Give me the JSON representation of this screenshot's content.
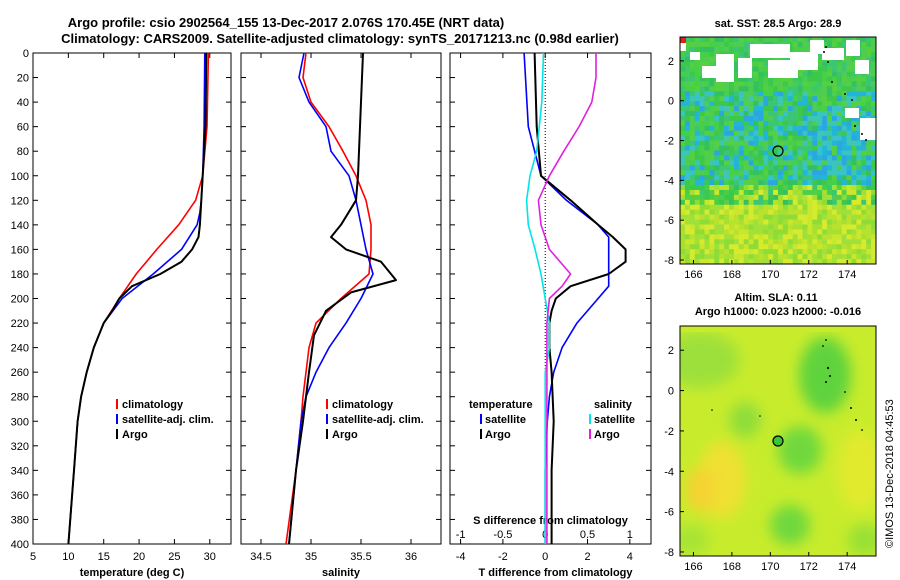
{
  "header": {
    "line1": "Argo profile: csio 2902564_155 13-Dec-2017 2.076S 170.45E (NRT data)",
    "line2": "Climatology: CARS2009. Satellite-adjusted climatology: synTS_20171213.nc (0.98d earlier)"
  },
  "footer_stamp": "©IMOS 13-Dec-2018 04:45:53",
  "colors": {
    "climatology": "#ff0000",
    "satellite": "#0000ff",
    "argo": "#000000",
    "sat_salinity": "#00e5e5",
    "argo_salinity": "#e020e0"
  },
  "chart_data": [
    {
      "type": "line",
      "panel": "temperature",
      "xlabel": "temperature (deg C)",
      "xlim": [
        5,
        33
      ],
      "xticks": [
        "5",
        "10",
        "15",
        "20",
        "25",
        "30"
      ],
      "xtick_values": [
        5,
        10,
        15,
        20,
        25,
        30
      ],
      "ylim": [
        0,
        400
      ],
      "yticks": [
        "0",
        "20",
        "40",
        "60",
        "80",
        "100",
        "120",
        "140",
        "160",
        "180",
        "200",
        "220",
        "240",
        "260",
        "280",
        "300",
        "320",
        "340",
        "360",
        "380",
        "400"
      ],
      "legend": [
        "climatology",
        "satellite-adj. clim.",
        "Argo"
      ],
      "series": [
        {
          "name": "climatology",
          "color": "#ff0000",
          "depth": [
            0,
            60,
            100,
            120,
            140,
            160,
            180,
            200,
            220,
            240,
            260,
            280,
            300,
            340,
            400
          ],
          "values": [
            29.8,
            29.6,
            29.0,
            28.0,
            25.6,
            22.5,
            19.6,
            17.2,
            15.0,
            13.6,
            12.6,
            11.8,
            11.3,
            10.8,
            10.0
          ]
        },
        {
          "name": "satellite-adj. clim.",
          "color": "#0000ff",
          "depth": [
            0,
            60,
            100,
            120,
            130,
            140,
            160,
            180,
            200,
            220,
            240,
            260,
            280,
            300,
            340,
            400
          ],
          "values": [
            29.3,
            29.2,
            29.0,
            28.8,
            28.6,
            28.2,
            26.0,
            22.0,
            17.6,
            15.0,
            13.6,
            12.6,
            11.8,
            11.3,
            10.8,
            10.0
          ]
        },
        {
          "name": "Argo",
          "color": "#000000",
          "depth": [
            0,
            60,
            100,
            120,
            140,
            150,
            160,
            170,
            180,
            190,
            200,
            210,
            220,
            240,
            260,
            280,
            300,
            340,
            400
          ],
          "values": [
            29.5,
            29.4,
            29.0,
            28.8,
            28.6,
            28.4,
            27.5,
            26.0,
            23.0,
            19.0,
            17.2,
            16.2,
            15.0,
            13.6,
            12.6,
            11.8,
            11.3,
            10.8,
            10.0
          ]
        }
      ]
    },
    {
      "type": "line",
      "panel": "salinity",
      "xlabel": "salinity",
      "xlim": [
        34.3,
        36.3
      ],
      "xticks": [
        "34.5",
        "35",
        "35.5",
        "36"
      ],
      "xtick_values": [
        34.5,
        35.0,
        35.5,
        36.0
      ],
      "ylim": [
        0,
        400
      ],
      "legend": [
        "climatology",
        "satellite-adj. clim.",
        "Argo"
      ],
      "series": [
        {
          "name": "climatology",
          "color": "#ff0000",
          "depth": [
            0,
            20,
            40,
            60,
            80,
            100,
            120,
            140,
            160,
            180,
            200,
            220,
            240,
            260,
            280,
            300,
            340,
            400
          ],
          "values": [
            34.95,
            34.92,
            35.0,
            35.18,
            35.32,
            35.45,
            35.55,
            35.6,
            35.6,
            35.58,
            35.3,
            35.05,
            34.98,
            34.95,
            34.92,
            34.9,
            34.85,
            34.75
          ]
        },
        {
          "name": "satellite-adj. clim.",
          "color": "#0000ff",
          "depth": [
            0,
            20,
            40,
            60,
            80,
            100,
            120,
            140,
            160,
            180,
            200,
            220,
            240,
            260,
            280,
            300,
            340,
            400
          ],
          "values": [
            34.93,
            34.88,
            34.98,
            35.15,
            35.2,
            35.38,
            35.45,
            35.5,
            35.55,
            35.62,
            35.5,
            35.35,
            35.18,
            35.05,
            34.95,
            34.9,
            34.85,
            34.78
          ]
        },
        {
          "name": "Argo",
          "color": "#000000",
          "depth": [
            0,
            40,
            80,
            100,
            120,
            140,
            150,
            160,
            170,
            180,
            185,
            195,
            210,
            230,
            260,
            300,
            340,
            400
          ],
          "values": [
            35.52,
            35.5,
            35.48,
            35.47,
            35.45,
            35.3,
            35.2,
            35.35,
            35.7,
            35.8,
            35.85,
            35.4,
            35.15,
            35.03,
            34.98,
            34.92,
            34.85,
            34.78
          ]
        }
      ]
    },
    {
      "type": "line",
      "panel": "difference",
      "xlabel": "T difference from climatology",
      "xlim": [
        -4.5,
        5
      ],
      "xticks": [
        "-4",
        "-2",
        "0",
        "2",
        "4"
      ],
      "xtick_values": [
        -4,
        -2,
        0,
        2,
        4
      ],
      "secondary_xlabel": "S difference from climatology",
      "secondary_xticks": [
        "-1",
        "-0.5",
        "0",
        "0.5",
        "1"
      ],
      "secondary_xtick_values": [
        -1,
        -0.5,
        0,
        0.5,
        1
      ],
      "ylim": [
        0,
        400
      ],
      "legend_temperature_title": "temperature",
      "legend_salinity_title": "salinity",
      "legend_temperature": [
        "satellite",
        "Argo"
      ],
      "legend_salinity": [
        "satellite",
        "Argo"
      ],
      "series": [
        {
          "name": "temperature satellite",
          "color": "#0000ff",
          "axis": "T",
          "depth": [
            0,
            60,
            100,
            120,
            140,
            150,
            170,
            190,
            200,
            220,
            240,
            260,
            280,
            300,
            340,
            400
          ],
          "values": [
            -1.0,
            -0.8,
            -0.2,
            1.0,
            2.5,
            3.0,
            3.0,
            3.0,
            2.5,
            1.5,
            0.8,
            0.4,
            0.2,
            0.1,
            0.0,
            0.0
          ]
        },
        {
          "name": "temperature Argo",
          "color": "#000000",
          "axis": "T",
          "depth": [
            0,
            60,
            100,
            120,
            140,
            150,
            160,
            170,
            180,
            190,
            200,
            210,
            220,
            240,
            260,
            300,
            340,
            400
          ],
          "values": [
            -0.5,
            -0.4,
            -0.2,
            1.2,
            2.5,
            3.2,
            3.8,
            3.8,
            3.0,
            1.2,
            0.5,
            0.3,
            0.2,
            0.2,
            0.3,
            0.4,
            0.3,
            0.3
          ]
        },
        {
          "name": "salinity satellite",
          "color": "#00e5e5",
          "axis": "S",
          "depth": [
            0,
            40,
            80,
            100,
            120,
            140,
            160,
            180,
            200,
            220,
            240,
            260,
            300,
            340,
            400
          ],
          "values": [
            -0.02,
            -0.04,
            -0.1,
            -0.18,
            -0.22,
            -0.2,
            -0.12,
            -0.05,
            0.0,
            0.05,
            0.05,
            0.0,
            0.0,
            0.0,
            0.0
          ]
        },
        {
          "name": "salinity Argo",
          "color": "#e020e0",
          "axis": "S",
          "depth": [
            0,
            20,
            40,
            60,
            80,
            100,
            120,
            140,
            160,
            180,
            190,
            200,
            220,
            240,
            300,
            400
          ],
          "values": [
            0.6,
            0.6,
            0.55,
            0.4,
            0.22,
            0.05,
            -0.08,
            -0.05,
            0.05,
            0.3,
            0.2,
            0.05,
            0.02,
            0.02,
            0.02,
            0.02
          ]
        }
      ]
    }
  ],
  "maps": {
    "sst": {
      "title": "sat. SST: 28.5 Argo: 28.9",
      "xticks": [
        "166",
        "168",
        "170",
        "172",
        "174"
      ],
      "yticks": [
        "2",
        "0",
        "-2",
        "-4",
        "-6",
        "-8"
      ],
      "argo_position": {
        "lon": 170.45,
        "lat": -2.076
      }
    },
    "sla": {
      "title_line1": "Altim. SLA: 0.11",
      "title_line2": "Argo h1000: 0.023 h2000: -0.016",
      "xticks": [
        "166",
        "168",
        "170",
        "172",
        "174"
      ],
      "yticks": [
        "2",
        "0",
        "-2",
        "-4",
        "-6",
        "-8"
      ],
      "argo_position": {
        "lon": 170.45,
        "lat": -2.076
      }
    }
  }
}
